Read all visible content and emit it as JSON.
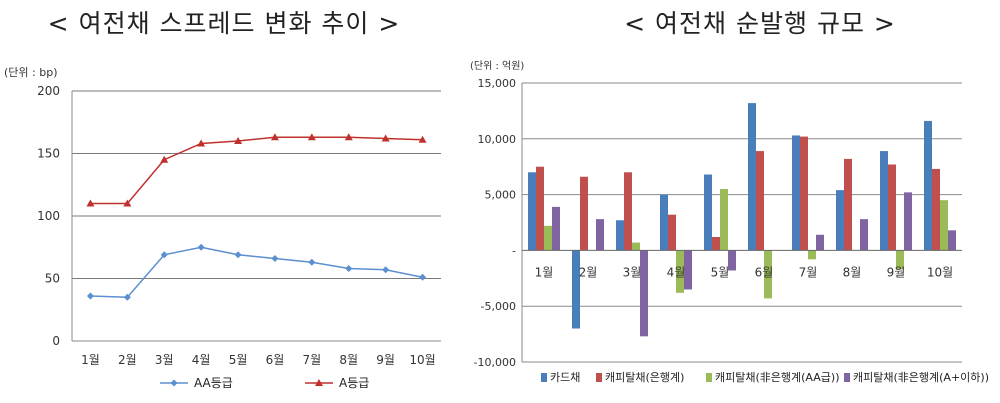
{
  "page": {
    "left_title": "< 여전채 스프레드 변화 추이 >",
    "right_title": "< 여전채 순발행 규모 >"
  },
  "chart_data": [
    {
      "type": "line",
      "title": "< 여전채 스프레드 변화 추이 >",
      "unit_label": "(단위 : bp)",
      "categories": [
        "1월",
        "2월",
        "3월",
        "4월",
        "5월",
        "6월",
        "7월",
        "8월",
        "9월",
        "10월"
      ],
      "ylim": [
        0,
        200
      ],
      "yticks": [
        0,
        50,
        100,
        150,
        200
      ],
      "grid": true,
      "legend_position": "bottom",
      "series": [
        {
          "name": "AA등급",
          "color": "#5b8fd0",
          "marker": "diamond",
          "values": [
            36,
            35,
            69,
            75,
            69,
            66,
            63,
            58,
            57,
            51
          ]
        },
        {
          "name": "A등급",
          "color": "#c0312e",
          "marker": "triangle",
          "values": [
            110,
            110,
            145,
            158,
            160,
            163,
            163,
            163,
            162,
            161
          ]
        }
      ]
    },
    {
      "type": "bar",
      "title": "< 여전채 순발행 규모 >",
      "unit_label": "(단위 : 억원)",
      "categories": [
        "1월",
        "2월",
        "3월",
        "4월",
        "5월",
        "6월",
        "7월",
        "8월",
        "9월",
        "10월"
      ],
      "ylim": [
        -10000,
        15000
      ],
      "yticks": [
        -10000,
        -5000,
        0,
        5000,
        10000,
        15000
      ],
      "ytick_labels": [
        "-10,000",
        "-5,000",
        "-",
        "5,000",
        "10,000",
        "15,000"
      ],
      "grid": true,
      "legend_position": "bottom",
      "series": [
        {
          "name": "카드채",
          "color": "#4a7ebb",
          "values": [
            7000,
            -7000,
            2700,
            5000,
            6800,
            13200,
            10300,
            5400,
            8900,
            11600
          ]
        },
        {
          "name": "캐피탈채(은행계)",
          "color": "#c0504d",
          "values": [
            7500,
            6600,
            7000,
            3200,
            1200,
            8900,
            10200,
            8200,
            7700,
            7300
          ]
        },
        {
          "name": "캐피탈채(非은행계(AA급))",
          "color": "#9bbb59",
          "values": [
            2200,
            0,
            700,
            -3800,
            5500,
            -4300,
            -800,
            0,
            -1700,
            4500
          ]
        },
        {
          "name": "캐피탈채(非은행계(A+이하))",
          "color": "#8064a2",
          "values": [
            3900,
            2800,
            -7700,
            -3500,
            -1800,
            0,
            1400,
            2800,
            5200,
            1800
          ]
        }
      ]
    }
  ]
}
